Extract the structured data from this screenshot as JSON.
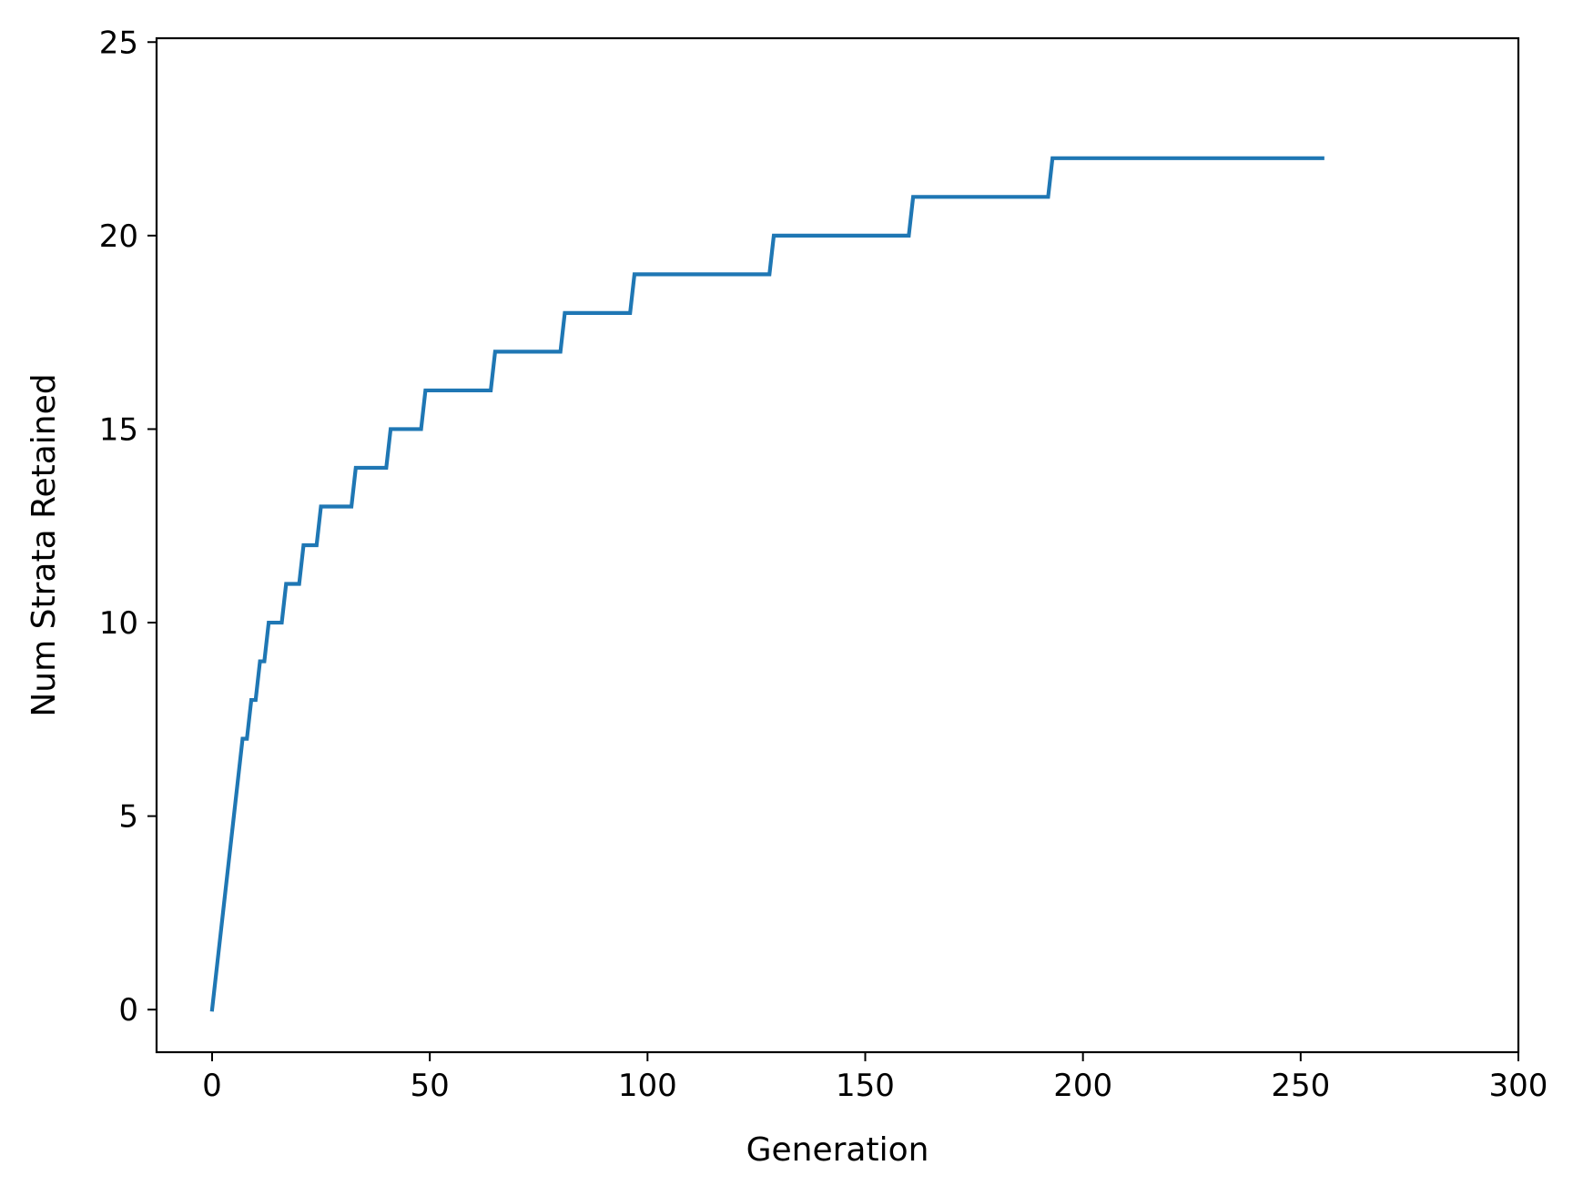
{
  "chart_data": {
    "type": "line",
    "title": "",
    "xlabel": "Generation",
    "ylabel": "Num Strata Retained",
    "xlim": [
      -12.75,
      300
    ],
    "ylim": [
      -1.1,
      25.1
    ],
    "xticks": [
      0,
      50,
      100,
      150,
      200,
      250,
      300
    ],
    "yticks": [
      0,
      5,
      10,
      15,
      20,
      25
    ],
    "xtick_labels": [
      "0",
      "50",
      "100",
      "150",
      "200",
      "250",
      "300"
    ],
    "ytick_labels": [
      "0",
      "5",
      "10",
      "15",
      "20",
      "25"
    ],
    "grid": false,
    "legend": "none",
    "series": [
      {
        "color": "#1f77b4",
        "x": [
          0,
          7,
          8,
          9,
          10,
          11,
          12,
          13,
          16,
          17,
          20,
          21,
          24,
          25,
          32,
          33,
          40,
          41,
          48,
          49,
          64,
          65,
          80,
          81,
          96,
          97,
          128,
          129,
          160,
          161,
          192,
          193,
          255
        ],
        "y": [
          0,
          7,
          7,
          8,
          8,
          9,
          9,
          10,
          10,
          11,
          11,
          12,
          12,
          13,
          13,
          14,
          14,
          15,
          15,
          16,
          16,
          17,
          17,
          18,
          18,
          19,
          19,
          20,
          20,
          21,
          21,
          22,
          22
        ]
      }
    ]
  }
}
